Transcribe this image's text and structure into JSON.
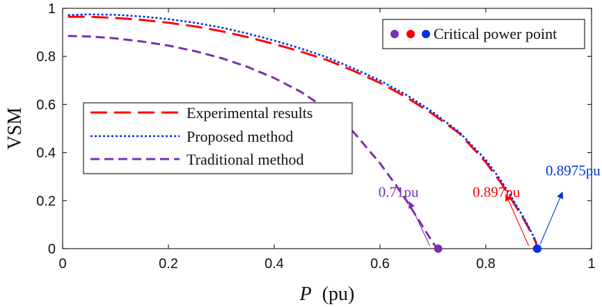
{
  "chart_data": {
    "type": "line",
    "title": "",
    "xlabel_italic": "P",
    "xlabel_unit": "(pu)",
    "ylabel": "VSM",
    "xlim": [
      0,
      1
    ],
    "ylim": [
      0,
      1
    ],
    "xticks": [
      "0",
      "0.2",
      "0.4",
      "0.6",
      "0.8",
      "1"
    ],
    "yticks": [
      "0",
      "0.2",
      "0.4",
      "0.6",
      "0.8",
      "1"
    ],
    "grid": false,
    "legend_position": "middle-left",
    "series": [
      {
        "name": "Experimental results",
        "color": "#ff0000",
        "style": "long-dash",
        "x": [
          0.01,
          0.05,
          0.1,
          0.15,
          0.2,
          0.25,
          0.3,
          0.35,
          0.4,
          0.45,
          0.5,
          0.55,
          0.6,
          0.65,
          0.7,
          0.75,
          0.8,
          0.83,
          0.85,
          0.87,
          0.88,
          0.89,
          0.895,
          0.897
        ],
        "y": [
          0.965,
          0.965,
          0.96,
          0.952,
          0.94,
          0.925,
          0.905,
          0.88,
          0.852,
          0.82,
          0.785,
          0.74,
          0.69,
          0.63,
          0.56,
          0.48,
          0.36,
          0.27,
          0.2,
          0.13,
          0.09,
          0.05,
          0.025,
          0.0
        ]
      },
      {
        "name": "Proposed method",
        "color": "#0033dd",
        "style": "dotted",
        "x": [
          0.01,
          0.05,
          0.1,
          0.15,
          0.2,
          0.25,
          0.3,
          0.35,
          0.4,
          0.45,
          0.5,
          0.55,
          0.6,
          0.65,
          0.7,
          0.75,
          0.8,
          0.83,
          0.85,
          0.87,
          0.88,
          0.89,
          0.895,
          0.8975
        ],
        "y": [
          0.972,
          0.975,
          0.973,
          0.966,
          0.955,
          0.94,
          0.92,
          0.895,
          0.866,
          0.833,
          0.796,
          0.75,
          0.7,
          0.64,
          0.568,
          0.485,
          0.37,
          0.28,
          0.21,
          0.135,
          0.095,
          0.052,
          0.026,
          0.0
        ]
      },
      {
        "name": "Traditional method",
        "color": "#7b2fb0",
        "style": "dash",
        "x": [
          0.01,
          0.05,
          0.1,
          0.15,
          0.2,
          0.25,
          0.3,
          0.35,
          0.4,
          0.45,
          0.5,
          0.55,
          0.6,
          0.63,
          0.65,
          0.67,
          0.68,
          0.69,
          0.7,
          0.705,
          0.71
        ],
        "y": [
          0.885,
          0.883,
          0.875,
          0.862,
          0.845,
          0.822,
          0.793,
          0.756,
          0.71,
          0.653,
          0.58,
          0.485,
          0.355,
          0.265,
          0.2,
          0.13,
          0.095,
          0.06,
          0.025,
          0.01,
          0.0
        ]
      }
    ],
    "critical_points": [
      {
        "label": "0.71pu",
        "x": 0.71,
        "y": 0,
        "color": "#7b2fb0",
        "text_anchor_x": 0.635,
        "text_anchor_y": 0.235,
        "arrow_tip_x": 0.655,
        "arrow_tip_y": 0.195
      },
      {
        "label": "0.897pu",
        "x": 0.897,
        "y": 0,
        "color": "#ff0000",
        "text_anchor_x": 0.82,
        "text_anchor_y": 0.235,
        "arrow_tip_x": 0.838,
        "arrow_tip_y": 0.225
      },
      {
        "label": "0.8975pu",
        "x": 0.8975,
        "y": 0,
        "color": "#0033dd",
        "text_anchor_x": 0.965,
        "text_anchor_y": 0.325,
        "arrow_tip_x": 0.945,
        "arrow_tip_y": 0.235
      }
    ],
    "critical_legend": {
      "label": "Critical power point",
      "colors": [
        "#7b2fb0",
        "#ff0000",
        "#0033dd"
      ]
    }
  }
}
